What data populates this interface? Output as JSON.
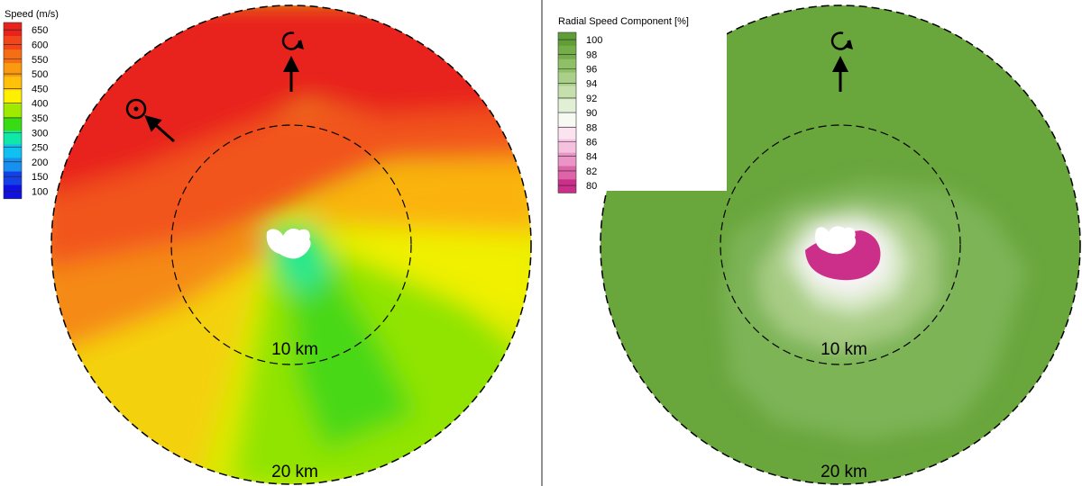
{
  "panels": [
    {
      "id": "left",
      "legend_title": "Speed (m/s)",
      "legend_ticks": [
        "650",
        "600",
        "550",
        "500",
        "450",
        "400",
        "350",
        "300",
        "250",
        "200",
        "150",
        "100"
      ],
      "legend_colors": [
        "#e8231d",
        "#f2451a",
        "#f56e14",
        "#fa9a10",
        "#ffc10a",
        "#fff000",
        "#a0ea00",
        "#38dc14",
        "#10e8a8",
        "#10c0f0",
        "#1890f0",
        "#1440e8",
        "#1010e0"
      ],
      "ring_labels": [
        "10 km",
        "20 km"
      ]
    },
    {
      "id": "right",
      "legend_title": "Radial Speed Component [%]",
      "legend_ticks": [
        "100",
        "98",
        "96",
        "94",
        "92",
        "90",
        "88",
        "86",
        "84",
        "82",
        "80"
      ],
      "legend_colors": [
        "#5f9e37",
        "#74ad4a",
        "#8fbf67",
        "#aacf8a",
        "#c6dfad",
        "#e1efd4",
        "#f6faf3",
        "#fbe3f0",
        "#f4c2de",
        "#ea95c5",
        "#dd64a8",
        "#cc2f8a"
      ],
      "ring_labels": [
        "10 km",
        "20 km"
      ]
    }
  ],
  "chart_data": [
    {
      "type": "heatmap",
      "title": "Speed (m/s)",
      "legend_ticks": [
        650,
        600,
        550,
        500,
        450,
        400,
        350,
        300,
        250,
        200,
        150,
        100
      ],
      "range": [
        100,
        650
      ],
      "rings_km": [
        10,
        20
      ],
      "regions": [
        {
          "area": "north / upper edge",
          "value": 650
        },
        {
          "area": "northwest",
          "value": 625
        },
        {
          "area": "west",
          "value": 575
        },
        {
          "area": "east",
          "value": 525
        },
        {
          "area": "southwest",
          "value": 500
        },
        {
          "area": "south",
          "value": 450
        },
        {
          "area": "near nucleus south",
          "value": 400
        },
        {
          "area": "nucleus edge",
          "value": 300
        }
      ]
    },
    {
      "type": "heatmap",
      "title": "Radial Speed Component [%]",
      "legend_ticks": [
        100,
        98,
        96,
        94,
        92,
        90,
        88,
        86,
        84,
        82,
        80
      ],
      "range": [
        80,
        100
      ],
      "rings_km": [
        10,
        20
      ],
      "regions": [
        {
          "area": "outer coma",
          "value": 99
        },
        {
          "area": "around inner ring",
          "value": 97
        },
        {
          "area": "inner halo",
          "value": 94
        },
        {
          "area": "near nucleus",
          "value": 90
        },
        {
          "area": "nucleus shadow southeast",
          "value": 80
        }
      ]
    }
  ]
}
